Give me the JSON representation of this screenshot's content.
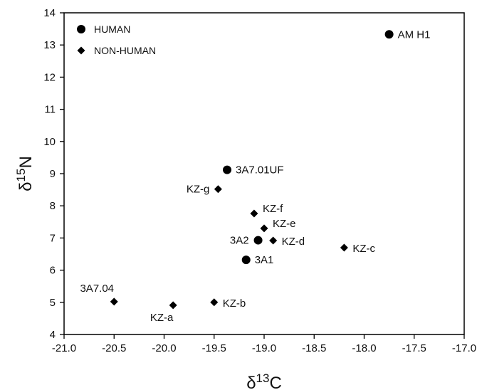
{
  "chart_data": {
    "type": "scatter",
    "xlim": [
      -21.0,
      -17.0
    ],
    "ylim": [
      4,
      14
    ],
    "x_ticks": [
      "-21.0",
      "-20.5",
      "-20.0",
      "-19.5",
      "-19.0",
      "-18.5",
      "-18.0",
      "-17.5",
      "-17.0"
    ],
    "y_ticks": [
      "4",
      "5",
      "6",
      "7",
      "8",
      "9",
      "10",
      "11",
      "12",
      "13",
      "14"
    ],
    "xlabel": {
      "main": "δ",
      "sup": "13",
      "tail": "C"
    },
    "ylabel": {
      "main": "δ",
      "sup": "15",
      "tail": "N"
    },
    "grid": false,
    "legend_position": "top-left",
    "series": [
      {
        "name": "HUMAN",
        "marker": "circle",
        "points": [
          {
            "label": "AM H1",
            "x": -17.75,
            "y": 13.33
          },
          {
            "label": "3A7.01UF",
            "x": -19.37,
            "y": 9.12
          },
          {
            "label": "3A2",
            "x": -19.06,
            "y": 6.93
          },
          {
            "label": "3A1",
            "x": -19.18,
            "y": 6.32
          }
        ]
      },
      {
        "name": "NON-HUMAN",
        "marker": "diamond",
        "points": [
          {
            "label": "KZ-g",
            "x": -19.46,
            "y": 8.52
          },
          {
            "label": "KZ-f",
            "x": -19.1,
            "y": 7.76
          },
          {
            "label": "KZ-e",
            "x": -19.0,
            "y": 7.3
          },
          {
            "label": "KZ-d",
            "x": -18.91,
            "y": 6.92
          },
          {
            "label": "KZ-c",
            "x": -18.2,
            "y": 6.7
          },
          {
            "label": "3A7.04",
            "x": -20.5,
            "y": 5.02
          },
          {
            "label": "KZ-a",
            "x": -19.91,
            "y": 4.91
          },
          {
            "label": "KZ-b",
            "x": -19.5,
            "y": 5.0
          }
        ]
      }
    ],
    "colors": {
      "marker": "#000000",
      "axis": "#000000"
    }
  }
}
